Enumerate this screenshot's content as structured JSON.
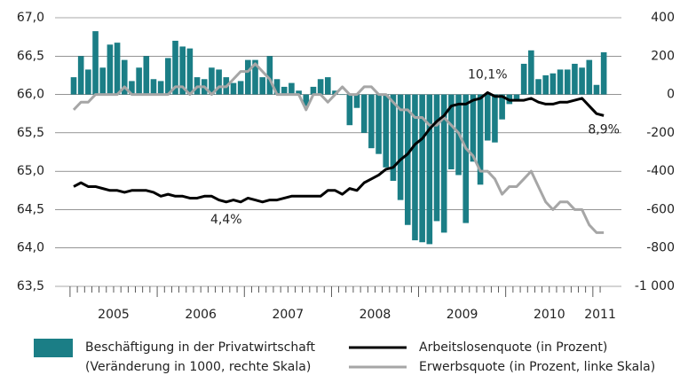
{
  "chart_data": {
    "type": "bar-line",
    "categories": [
      null,
      null,
      null,
      null,
      null,
      null,
      null,
      null,
      null,
      null,
      null,
      null,
      null,
      null,
      null,
      null,
      null,
      null,
      null,
      null,
      null,
      null,
      null,
      null,
      null,
      null,
      null,
      null,
      null,
      null,
      null,
      null,
      null,
      null,
      null,
      null,
      null,
      null,
      null,
      null,
      null,
      null,
      null,
      null,
      null,
      null,
      null,
      null,
      null,
      null,
      null,
      null,
      null,
      null,
      null,
      null,
      null,
      null,
      null,
      null,
      null,
      null,
      null,
      null,
      null,
      null,
      null,
      null,
      null,
      null,
      null,
      null,
      null,
      null
    ],
    "xticks": [
      {
        "value": 5.5,
        "label": "2005"
      },
      {
        "value": 17.5,
        "label": "2006"
      },
      {
        "value": 29.5,
        "label": "2007"
      },
      {
        "value": 41.5,
        "label": "2008"
      },
      {
        "value": 53.5,
        "label": "2009"
      },
      {
        "value": 65.5,
        "label": "2010"
      },
      {
        "value": 72.5,
        "label": "2011"
      }
    ],
    "series": [
      {
        "name": "Beschäftigung in der Privatwirtschaft",
        "note": "(Veränderung in 1000, rechte Skala)",
        "kind": "bar",
        "axis": "y2",
        "color": "#1b7e86",
        "values": [
          90,
          200,
          130,
          330,
          140,
          260,
          270,
          180,
          70,
          140,
          200,
          80,
          70,
          190,
          280,
          250,
          240,
          90,
          80,
          140,
          130,
          90,
          60,
          70,
          180,
          180,
          90,
          200,
          80,
          40,
          60,
          20,
          -60,
          40,
          80,
          90,
          20,
          0,
          -160,
          -70,
          -200,
          -280,
          -310,
          -380,
          -450,
          -550,
          -680,
          -760,
          -770,
          -780,
          -660,
          -720,
          -390,
          -420,
          -670,
          -350,
          -470,
          -240,
          -250,
          -130,
          -50,
          -30,
          160,
          230,
          80,
          100,
          110,
          130,
          130,
          160,
          140,
          180,
          50,
          220
        ]
      },
      {
        "name": "Arbeitslosenquote (in Prozent)",
        "kind": "line",
        "axis": "y3",
        "color": "#000000",
        "values": [
          5.2,
          5.4,
          5.2,
          5.2,
          5.1,
          5.0,
          5.0,
          4.9,
          5.0,
          5.0,
          5.0,
          4.9,
          4.7,
          4.8,
          4.7,
          4.7,
          4.6,
          4.6,
          4.7,
          4.7,
          4.5,
          4.4,
          4.5,
          4.4,
          4.6,
          4.5,
          4.4,
          4.5,
          4.5,
          4.6,
          4.7,
          4.7,
          4.7,
          4.7,
          4.7,
          5.0,
          5.0,
          4.8,
          5.1,
          5.0,
          5.4,
          5.6,
          5.8,
          6.1,
          6.2,
          6.6,
          6.9,
          7.4,
          7.7,
          8.2,
          8.6,
          8.9,
          9.4,
          9.5,
          9.5,
          9.7,
          9.8,
          10.1,
          9.9,
          9.9,
          9.7,
          9.7,
          9.7,
          9.8,
          9.6,
          9.5,
          9.5,
          9.6,
          9.6,
          9.7,
          9.8,
          9.4,
          9.0,
          8.9
        ]
      },
      {
        "name": "Erwerbsquote (in Prozent, linke Skala)",
        "kind": "line",
        "axis": "y",
        "color": "#a6a6a6",
        "values": [
          65.8,
          65.9,
          65.9,
          66.0,
          66.0,
          66.0,
          66.0,
          66.1,
          66.0,
          66.0,
          66.0,
          66.0,
          66.0,
          66.0,
          66.1,
          66.1,
          66.0,
          66.1,
          66.1,
          66.0,
          66.1,
          66.1,
          66.2,
          66.3,
          66.3,
          66.4,
          66.3,
          66.2,
          66.0,
          66.0,
          66.0,
          66.0,
          65.8,
          66.0,
          66.0,
          65.9,
          66.0,
          66.1,
          66.0,
          66.0,
          66.1,
          66.1,
          66.0,
          66.0,
          65.9,
          65.8,
          65.8,
          65.7,
          65.7,
          65.6,
          65.6,
          65.7,
          65.6,
          65.5,
          65.3,
          65.2,
          65.0,
          65.0,
          64.9,
          64.7,
          64.8,
          64.8,
          64.9,
          65.0,
          64.8,
          64.6,
          64.5,
          64.6,
          64.6,
          64.5,
          64.5,
          64.3,
          64.2,
          64.2
        ]
      }
    ],
    "ylim": [
      63.5,
      67.0
    ],
    "yticks": [
      {
        "value": 63.5,
        "label": "63,5"
      },
      {
        "value": 64.0,
        "label": "64,0"
      },
      {
        "value": 64.5,
        "label": "64,5"
      },
      {
        "value": 65.0,
        "label": "65,0"
      },
      {
        "value": 65.5,
        "label": "65,5"
      },
      {
        "value": 66.0,
        "label": "66,0"
      },
      {
        "value": 66.5,
        "label": "66,5"
      },
      {
        "value": 67.0,
        "label": "67,0"
      }
    ],
    "y2lim": [
      -1000,
      400
    ],
    "y2ticks": [
      {
        "value": -1000,
        "label": "-1 000"
      },
      -800,
      -600,
      -400,
      -200,
      0,
      200,
      400
    ],
    "y3lim": [
      0,
      14
    ],
    "grid": true,
    "annotations": [
      {
        "text": "10,1%",
        "series": 1,
        "index": 57
      },
      {
        "text": "4,4%",
        "series": 1,
        "index": 21
      },
      {
        "text": "8,9%",
        "series": 1,
        "index": 73
      }
    ]
  }
}
